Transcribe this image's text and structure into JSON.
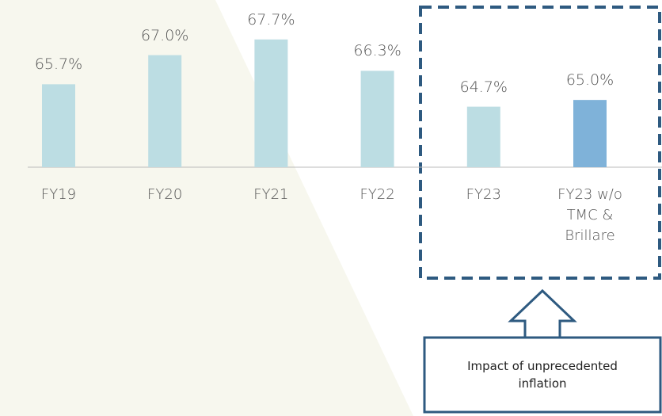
{
  "chart_data": {
    "type": "bar",
    "categories": [
      "FY19",
      "FY20",
      "FY21",
      "FY22",
      "FY23",
      "FY23 w/o TMC & Brillare"
    ],
    "values": [
      65.7,
      67.0,
      67.7,
      66.3,
      64.7,
      65.0
    ],
    "value_labels": [
      "65.7%",
      "67.0%",
      "67.7%",
      "66.3%",
      "64.7%",
      "65.0%"
    ],
    "colors": [
      "#bcdde3",
      "#bcdde3",
      "#bcdde3",
      "#bcdde3",
      "#bcdde3",
      "#7fb2d9"
    ],
    "ylim": [
      62,
      69
    ],
    "annotation": "Impact of  unprecedented inflation"
  }
}
